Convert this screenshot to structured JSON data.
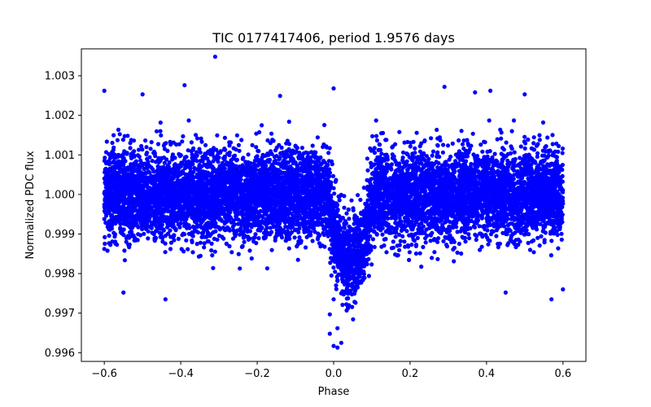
{
  "chart_data": {
    "type": "scatter",
    "title": "TIC 0177417406, period 1.9576 days",
    "xlabel": "Phase",
    "ylabel": "Normalized PDC flux",
    "xlim": [
      -0.66,
      0.66
    ],
    "ylim": [
      0.99578,
      1.00368
    ],
    "xticks": [
      -0.6,
      -0.4,
      -0.2,
      0.0,
      0.2,
      0.4,
      0.6
    ],
    "xtick_labels": [
      "−0.6",
      "−0.4",
      "−0.2",
      "0.0",
      "0.2",
      "0.4",
      "0.6"
    ],
    "yticks": [
      0.996,
      0.997,
      0.998,
      0.999,
      1.0,
      1.001,
      1.002,
      1.003
    ],
    "ytick_labels": [
      "0.996",
      "0.997",
      "0.998",
      "0.999",
      "1.000",
      "1.001",
      "1.002",
      "1.003"
    ],
    "grid": false,
    "marker_color": "#0000ff",
    "series": [
      {
        "name": "PDC flux",
        "phase_range": [
          -0.6,
          0.6
        ],
        "baseline": 1.0,
        "scatter_std": 0.00055,
        "transit_center_phase": 0.045,
        "transit_depth": 0.0017,
        "transit_half_width": 0.06,
        "n_points": 9000,
        "outliers": [
          {
            "x": -0.6,
            "y": 1.00262
          },
          {
            "x": -0.31,
            "y": 1.00348
          },
          {
            "x": -0.39,
            "y": 1.00276
          },
          {
            "x": -0.5,
            "y": 1.00253
          },
          {
            "x": -0.14,
            "y": 1.00249
          },
          {
            "x": 0.0,
            "y": 1.00268
          },
          {
            "x": 0.29,
            "y": 1.00272
          },
          {
            "x": 0.37,
            "y": 1.00258
          },
          {
            "x": 0.41,
            "y": 1.00262
          },
          {
            "x": 0.5,
            "y": 1.00253
          },
          {
            "x": -0.55,
            "y": 0.99752
          },
          {
            "x": -0.44,
            "y": 0.99735
          },
          {
            "x": 0.45,
            "y": 0.99752
          },
          {
            "x": 0.57,
            "y": 0.99735
          },
          {
            "x": 0.6,
            "y": 0.9976
          },
          {
            "x": 0.01,
            "y": 0.99613
          },
          {
            "x": 0.0,
            "y": 0.99617
          },
          {
            "x": 0.02,
            "y": 0.99625
          },
          {
            "x": -0.01,
            "y": 0.99648
          },
          {
            "x": 0.01,
            "y": 0.99662
          },
          {
            "x": -0.01,
            "y": 0.99697
          },
          {
            "x": 0.0,
            "y": 0.99735
          },
          {
            "x": 0.02,
            "y": 0.9975
          },
          {
            "x": 0.03,
            "y": 0.99755
          },
          {
            "x": 0.04,
            "y": 0.9972
          }
        ]
      }
    ]
  }
}
